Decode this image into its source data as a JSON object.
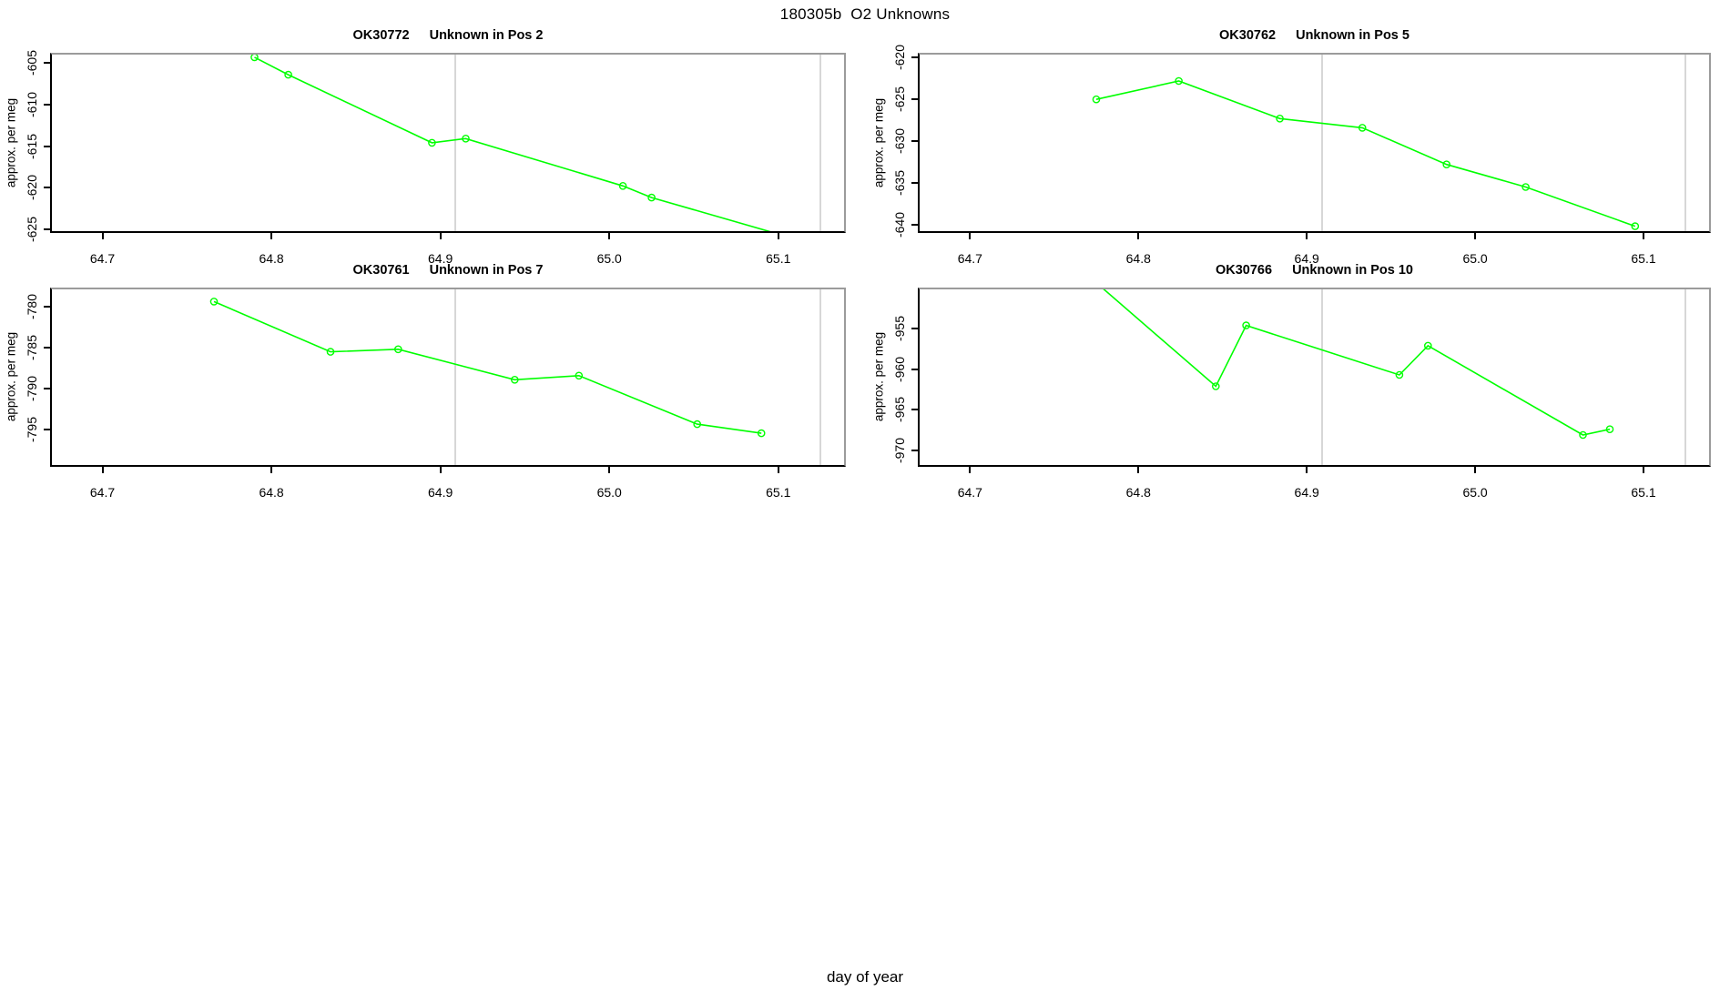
{
  "figure": {
    "title": "180305b  O2 Unknowns",
    "outer_xlabel": "day of year",
    "colors": {
      "series_green": "#00ff00",
      "reference_line_gray": "#d7d7d7",
      "axis_black": "#000000",
      "box_gray": "#9b9b9b"
    }
  },
  "chart_data": [
    {
      "type": "line",
      "sample": "OK30772",
      "position_label": "Unknown in Pos 2",
      "ylabel": "approx. per meg",
      "xlim": [
        64.669,
        65.14
      ],
      "ylim": [
        -625.47,
        -603.76
      ],
      "x_ticks": [
        64.7,
        64.8,
        64.9,
        65.0,
        65.1
      ],
      "y_ticks": [
        -605,
        -610,
        -615,
        -620,
        -625
      ],
      "vlines": [
        64.909,
        65.125
      ],
      "points": [
        {
          "x": 64.79,
          "y": -604.3
        },
        {
          "x": 64.81,
          "y": -606.4
        },
        {
          "x": 64.895,
          "y": -614.6
        },
        {
          "x": 64.915,
          "y": -614.1
        },
        {
          "x": 65.008,
          "y": -619.8
        },
        {
          "x": 65.025,
          "y": -621.2
        },
        {
          "x": 65.105,
          "y": -625.9,
          "clipped": true
        }
      ]
    },
    {
      "type": "line",
      "sample": "OK30762",
      "position_label": "Unknown in Pos 5",
      "ylabel": "approx. per meg",
      "xlim": [
        64.669,
        65.14
      ],
      "ylim": [
        -641.01,
        -619.42
      ],
      "x_ticks": [
        64.7,
        64.8,
        64.9,
        65.0,
        65.1
      ],
      "y_ticks": [
        -620,
        -625,
        -630,
        -635,
        -640
      ],
      "vlines": [
        64.909,
        65.125
      ],
      "points": [
        {
          "x": 64.775,
          "y": -625.0
        },
        {
          "x": 64.824,
          "y": -622.8
        },
        {
          "x": 64.884,
          "y": -627.3
        },
        {
          "x": 64.933,
          "y": -628.4
        },
        {
          "x": 64.983,
          "y": -632.8
        },
        {
          "x": 65.03,
          "y": -635.5
        },
        {
          "x": 65.095,
          "y": -640.2
        }
      ]
    },
    {
      "type": "line",
      "sample": "OK30761",
      "position_label": "Unknown in Pos 7",
      "ylabel": "approx. per meg",
      "xlim": [
        64.669,
        65.14
      ],
      "ylim": [
        -799.48,
        -777.7
      ],
      "x_ticks": [
        64.7,
        64.8,
        64.9,
        65.0,
        65.1
      ],
      "y_ticks": [
        -780,
        -785,
        -790,
        -795
      ],
      "vlines": [
        64.909,
        65.125
      ],
      "points": [
        {
          "x": 64.766,
          "y": -779.4
        },
        {
          "x": 64.835,
          "y": -785.5
        },
        {
          "x": 64.875,
          "y": -785.2
        },
        {
          "x": 64.944,
          "y": -788.9
        },
        {
          "x": 64.982,
          "y": -788.4
        },
        {
          "x": 65.052,
          "y": -794.3
        },
        {
          "x": 65.09,
          "y": -795.4
        }
      ]
    },
    {
      "type": "line",
      "sample": "OK30766",
      "position_label": "Unknown in Pos 10",
      "ylabel": "approx. per meg",
      "xlim": [
        64.669,
        65.14
      ],
      "ylim": [
        -972.03,
        -949.93
      ],
      "x_ticks": [
        64.7,
        64.8,
        64.9,
        65.0,
        65.1
      ],
      "y_ticks": [
        -955,
        -960,
        -965,
        -970
      ],
      "vlines": [
        64.909,
        65.125
      ],
      "points": [
        {
          "x": 64.772,
          "y": -948.8,
          "clipped": true
        },
        {
          "x": 64.846,
          "y": -962.1
        },
        {
          "x": 64.864,
          "y": -954.6
        },
        {
          "x": 64.955,
          "y": -960.7
        },
        {
          "x": 64.972,
          "y": -957.1
        },
        {
          "x": 65.064,
          "y": -968.1
        },
        {
          "x": 65.08,
          "y": -967.4
        }
      ]
    }
  ]
}
